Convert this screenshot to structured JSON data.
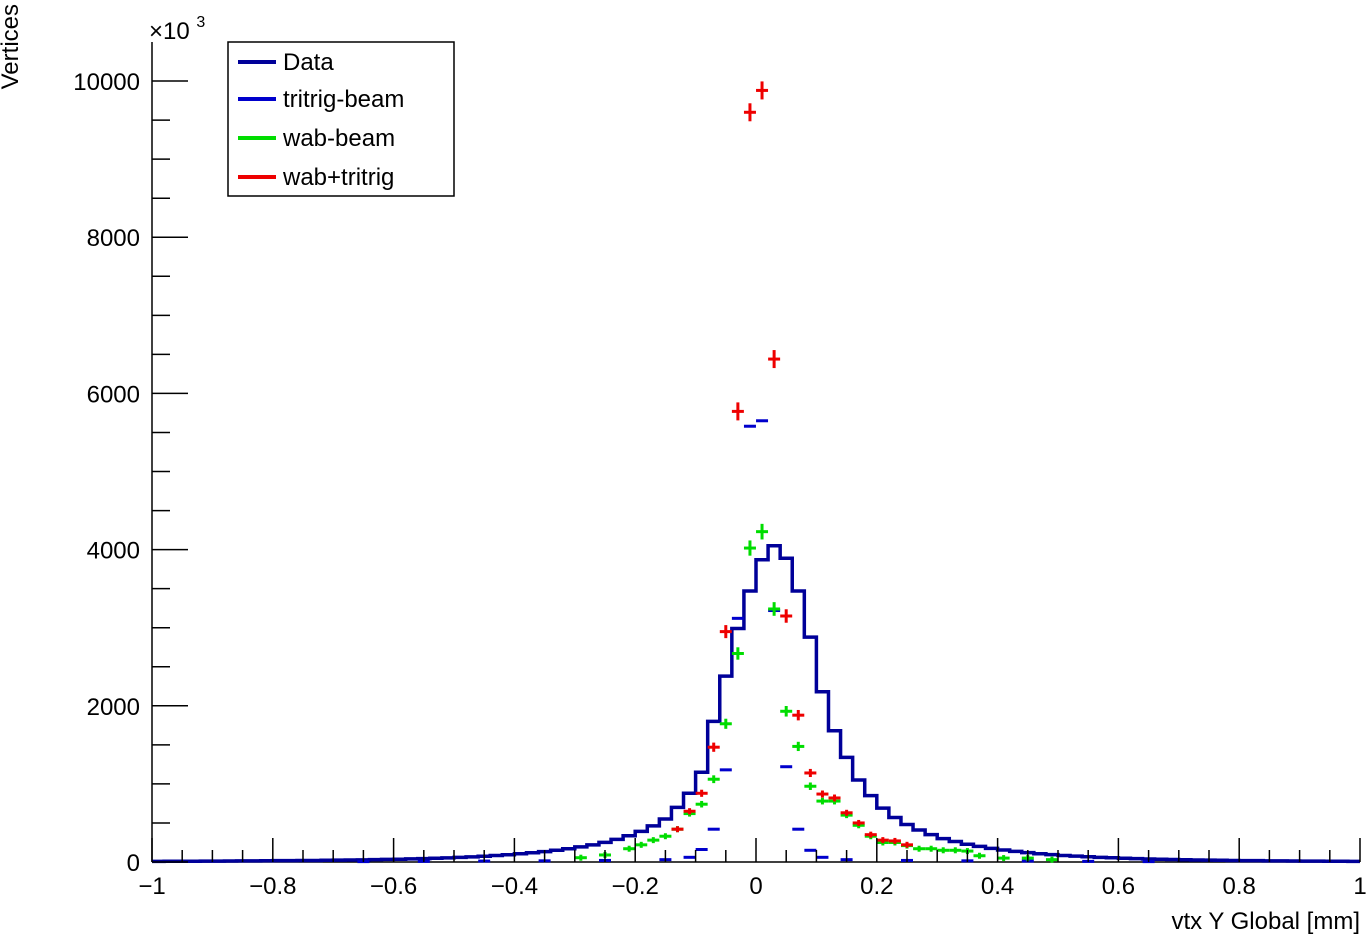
{
  "chart_data": {
    "type": "line",
    "title": "",
    "xlabel": "vtx Y Global [mm]",
    "ylabel": "Vertices",
    "y_multiplier_label": "×10",
    "y_multiplier_exp": "3",
    "xlim": [
      -1,
      1
    ],
    "ylim": [
      0,
      10500
    ],
    "x_ticks": [
      -1,
      -0.8,
      -0.6,
      -0.4,
      -0.2,
      0,
      0.2,
      0.4,
      0.6,
      0.8,
      1
    ],
    "x_tick_labels": [
      "−1",
      "−0.8",
      "−0.6",
      "−0.4",
      "−0.2",
      "0",
      "0.2",
      "0.4",
      "0.6",
      "0.8",
      "1"
    ],
    "y_ticks": [
      0,
      2000,
      4000,
      6000,
      8000,
      10000
    ],
    "y_tick_labels": [
      "0",
      "2000",
      "4000",
      "6000",
      "8000",
      "10000"
    ],
    "legend_position": "top-left",
    "series": [
      {
        "name": "Data",
        "style": "histogram",
        "color": "#000099",
        "x": [
          -0.99,
          -0.97,
          -0.95,
          -0.93,
          -0.91,
          -0.89,
          -0.87,
          -0.85,
          -0.83,
          -0.81,
          -0.79,
          -0.77,
          -0.75,
          -0.73,
          -0.71,
          -0.69,
          -0.67,
          -0.65,
          -0.63,
          -0.61,
          -0.59,
          -0.57,
          -0.55,
          -0.53,
          -0.51,
          -0.49,
          -0.47,
          -0.45,
          -0.43,
          -0.41,
          -0.39,
          -0.37,
          -0.35,
          -0.33,
          -0.31,
          -0.29,
          -0.27,
          -0.25,
          -0.23,
          -0.21,
          -0.19,
          -0.17,
          -0.15,
          -0.13,
          -0.11,
          -0.09,
          -0.07,
          -0.05,
          -0.03,
          -0.01,
          0.01,
          0.03,
          0.05,
          0.07,
          0.09,
          0.11,
          0.13,
          0.15,
          0.17,
          0.19,
          0.21,
          0.23,
          0.25,
          0.27,
          0.29,
          0.31,
          0.33,
          0.35,
          0.37,
          0.39,
          0.41,
          0.43,
          0.45,
          0.47,
          0.49,
          0.51,
          0.53,
          0.55,
          0.57,
          0.59,
          0.61,
          0.63,
          0.65,
          0.67,
          0.69,
          0.71,
          0.73,
          0.75,
          0.77,
          0.79,
          0.81,
          0.83,
          0.85,
          0.87,
          0.89,
          0.91,
          0.93,
          0.95,
          0.97,
          0.99
        ],
        "values": [
          8,
          9,
          10,
          10,
          11,
          12,
          13,
          14,
          15,
          16,
          17,
          18,
          19,
          20,
          22,
          24,
          26,
          28,
          30,
          33,
          36,
          40,
          44,
          48,
          53,
          59,
          66,
          74,
          83,
          93,
          105,
          118,
          133,
          150,
          170,
          193,
          220,
          252,
          290,
          336,
          392,
          462,
          551,
          700,
          880,
          1150,
          1800,
          2380,
          2990,
          3470,
          3870,
          4050,
          3890,
          3470,
          2880,
          2180,
          1680,
          1340,
          1050,
          850,
          690,
          570,
          480,
          410,
          350,
          300,
          262,
          228,
          200,
          175,
          154,
          136,
          120,
          106,
          94,
          84,
          75,
          67,
          60,
          54,
          48,
          43,
          39,
          35,
          32,
          29,
          26,
          24,
          22,
          20,
          18,
          17,
          15,
          14,
          13,
          12,
          11,
          10,
          9,
          8
        ]
      },
      {
        "name": "tritrig-beam",
        "style": "markers",
        "color": "#0000cc",
        "x": [
          -0.65,
          -0.55,
          -0.45,
          -0.35,
          -0.25,
          -0.15,
          -0.11,
          -0.09,
          -0.07,
          -0.05,
          -0.03,
          -0.01,
          0.01,
          0.03,
          0.05,
          0.07,
          0.09,
          0.11,
          0.15,
          0.25,
          0.35,
          0.45,
          0.55,
          0.65
        ],
        "values": [
          5,
          8,
          12,
          15,
          20,
          30,
          60,
          160,
          420,
          1180,
          3120,
          5580,
          5650,
          3220,
          1220,
          420,
          150,
          60,
          30,
          20,
          15,
          12,
          8,
          5
        ]
      },
      {
        "name": "wab-beam",
        "style": "markers",
        "color": "#00dd00",
        "x": [
          -0.29,
          -0.25,
          -0.21,
          -0.19,
          -0.17,
          -0.15,
          -0.13,
          -0.11,
          -0.09,
          -0.07,
          -0.05,
          -0.03,
          -0.01,
          0.01,
          0.03,
          0.05,
          0.07,
          0.09,
          0.11,
          0.13,
          0.15,
          0.17,
          0.19,
          0.21,
          0.23,
          0.25,
          0.27,
          0.29,
          0.31,
          0.33,
          0.35,
          0.37,
          0.41,
          0.45,
          0.49
        ],
        "values": [
          55,
          90,
          170,
          220,
          280,
          330,
          420,
          620,
          740,
          1060,
          1770,
          2670,
          4020,
          4230,
          3240,
          1930,
          1480,
          970,
          780,
          780,
          600,
          470,
          330,
          250,
          250,
          210,
          170,
          170,
          150,
          150,
          140,
          80,
          50,
          50,
          30
        ]
      },
      {
        "name": "wab+tritrig",
        "style": "markers",
        "color": "#ee0000",
        "x": [
          -0.13,
          -0.11,
          -0.09,
          -0.07,
          -0.05,
          -0.03,
          -0.01,
          0.01,
          0.03,
          0.05,
          0.07,
          0.09,
          0.11,
          0.13,
          0.15,
          0.17,
          0.19,
          0.21,
          0.23,
          0.25
        ],
        "values": [
          420,
          650,
          880,
          1470,
          2950,
          5770,
          9600,
          9880,
          6440,
          3150,
          1880,
          1140,
          870,
          820,
          630,
          500,
          350,
          280,
          270,
          220
        ]
      }
    ]
  }
}
